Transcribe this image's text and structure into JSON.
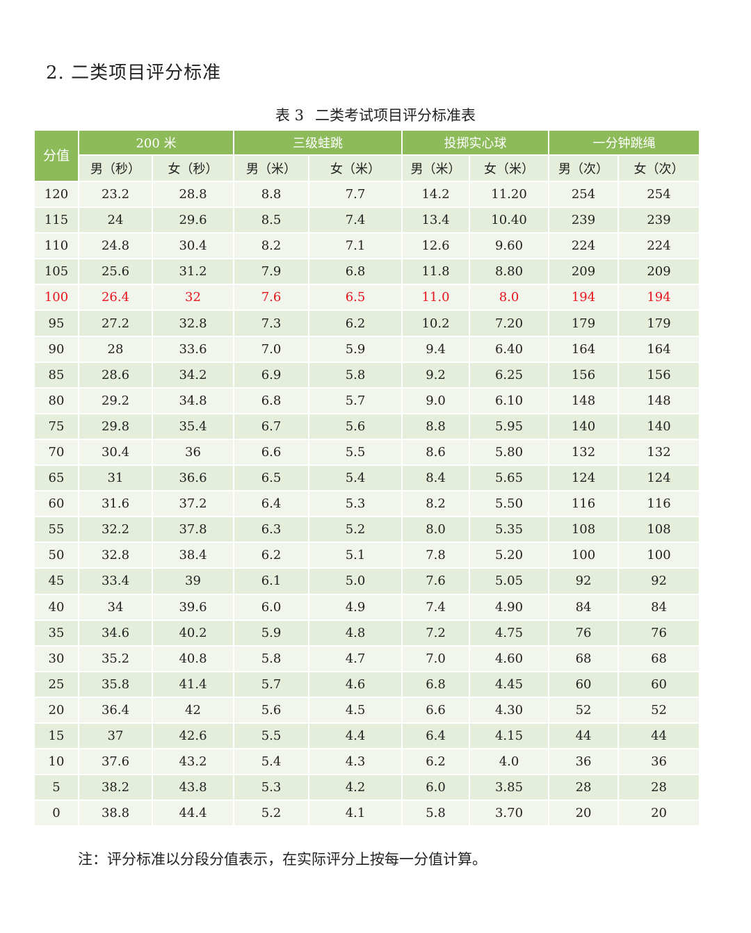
{
  "section_title": "2. 二类项目评分标准",
  "table_caption": {
    "label": "表 3",
    "title": "二类考试项目评分标准表"
  },
  "headers": {
    "score": "分值",
    "groups": [
      "200 米",
      "三级蛙跳",
      "投掷实心球",
      "一分钟跳绳"
    ],
    "sub": [
      "男（秒）",
      "女（秒）",
      "男（米）",
      "女（米）",
      "男（米）",
      "女（米）",
      "男（次）",
      "女（次）"
    ]
  },
  "rows": [
    [
      "120",
      "23.2",
      "28.8",
      "8.8",
      "7.7",
      "14.2",
      "11.20",
      "254",
      "254"
    ],
    [
      "115",
      "24",
      "29.6",
      "8.5",
      "7.4",
      "13.4",
      "10.40",
      "239",
      "239"
    ],
    [
      "110",
      "24.8",
      "30.4",
      "8.2",
      "7.1",
      "12.6",
      "9.60",
      "224",
      "224"
    ],
    [
      "105",
      "25.6",
      "31.2",
      "7.9",
      "6.8",
      "11.8",
      "8.80",
      "209",
      "209"
    ],
    [
      "100",
      "26.4",
      "32",
      "7.6",
      "6.5",
      "11.0",
      "8.0",
      "194",
      "194"
    ],
    [
      "95",
      "27.2",
      "32.8",
      "7.3",
      "6.2",
      "10.2",
      "7.20",
      "179",
      "179"
    ],
    [
      "90",
      "28",
      "33.6",
      "7.0",
      "5.9",
      "9.4",
      "6.40",
      "164",
      "164"
    ],
    [
      "85",
      "28.6",
      "34.2",
      "6.9",
      "5.8",
      "9.2",
      "6.25",
      "156",
      "156"
    ],
    [
      "80",
      "29.2",
      "34.8",
      "6.8",
      "5.7",
      "9.0",
      "6.10",
      "148",
      "148"
    ],
    [
      "75",
      "29.8",
      "35.4",
      "6.7",
      "5.6",
      "8.8",
      "5.95",
      "140",
      "140"
    ],
    [
      "70",
      "30.4",
      "36",
      "6.6",
      "5.5",
      "8.6",
      "5.80",
      "132",
      "132"
    ],
    [
      "65",
      "31",
      "36.6",
      "6.5",
      "5.4",
      "8.4",
      "5.65",
      "124",
      "124"
    ],
    [
      "60",
      "31.6",
      "37.2",
      "6.4",
      "5.3",
      "8.2",
      "5.50",
      "116",
      "116"
    ],
    [
      "55",
      "32.2",
      "37.8",
      "6.3",
      "5.2",
      "8.0",
      "5.35",
      "108",
      "108"
    ],
    [
      "50",
      "32.8",
      "38.4",
      "6.2",
      "5.1",
      "7.8",
      "5.20",
      "100",
      "100"
    ],
    [
      "45",
      "33.4",
      "39",
      "6.1",
      "5.0",
      "7.6",
      "5.05",
      "92",
      "92"
    ],
    [
      "40",
      "34",
      "39.6",
      "6.0",
      "4.9",
      "7.4",
      "4.90",
      "84",
      "84"
    ],
    [
      "35",
      "34.6",
      "40.2",
      "5.9",
      "4.8",
      "7.2",
      "4.75",
      "76",
      "76"
    ],
    [
      "30",
      "35.2",
      "40.8",
      "5.8",
      "4.7",
      "7.0",
      "4.60",
      "68",
      "68"
    ],
    [
      "25",
      "35.8",
      "41.4",
      "5.7",
      "4.6",
      "6.8",
      "4.45",
      "60",
      "60"
    ],
    [
      "20",
      "36.4",
      "42",
      "5.6",
      "4.5",
      "6.6",
      "4.30",
      "52",
      "52"
    ],
    [
      "15",
      "37",
      "42.6",
      "5.5",
      "4.4",
      "6.4",
      "4.15",
      "44",
      "44"
    ],
    [
      "10",
      "37.6",
      "43.2",
      "5.4",
      "4.3",
      "6.2",
      "4.0",
      "36",
      "36"
    ],
    [
      "5",
      "38.2",
      "43.8",
      "5.3",
      "4.2",
      "6.0",
      "3.85",
      "28",
      "28"
    ],
    [
      "0",
      "38.8",
      "44.4",
      "5.2",
      "4.1",
      "5.8",
      "3.70",
      "20",
      "20"
    ]
  ],
  "highlight_row_score": "100",
  "colors": {
    "header_green": "#8dbb5a",
    "row_light": "#f1f5ec",
    "row_dark": "#e4eedb",
    "highlight_red": "#e8141c"
  },
  "note": "注：评分标准以分段分值表示，在实际评分上按每一分值计算。"
}
